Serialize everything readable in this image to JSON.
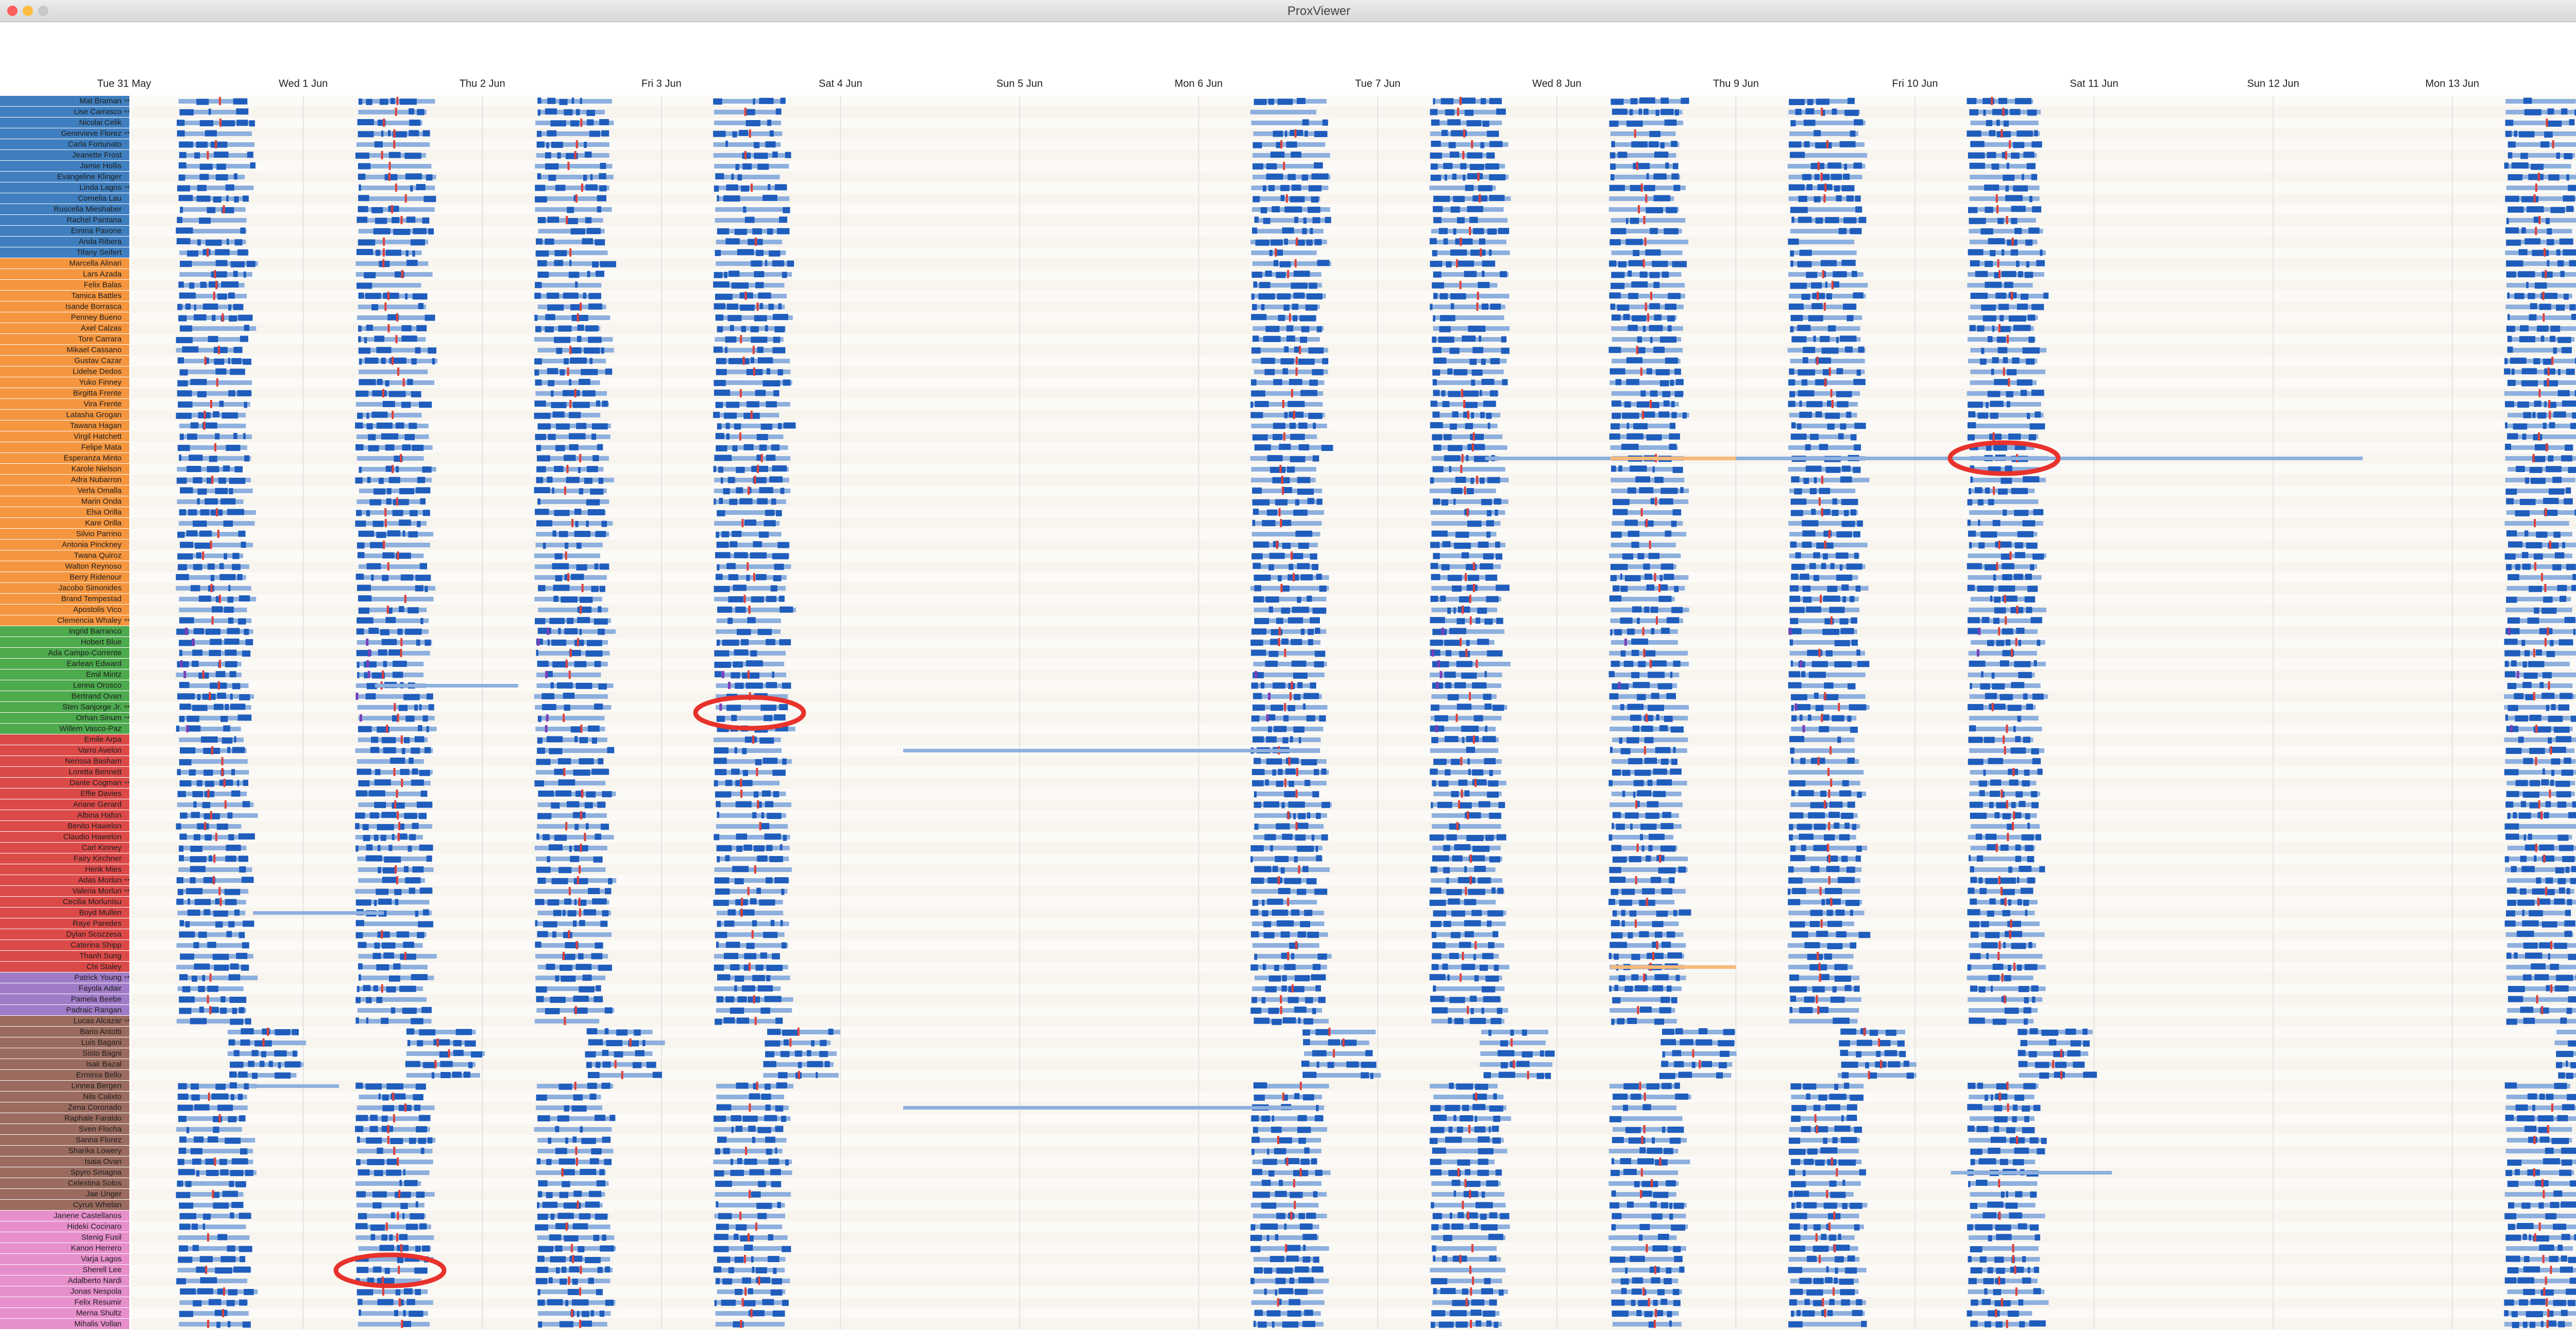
{
  "window_title": "ProxViewer",
  "days": [
    "Tue 31 May",
    "Wed 1 Jun",
    "Thu 2 Jun",
    "Fri 3 Jun",
    "Sat 4 Jun",
    "Sun 5 Jun",
    "Mon 6 Jun",
    "Tue 7 Jun",
    "Wed 8 Jun",
    "Thu 9 Jun",
    "Fri 10 Jun",
    "Sat 11 Jun",
    "Sun 12 Jun",
    "Mon 13 Jun"
  ],
  "groups": [
    {
      "color": "#3f7fbf",
      "people": [
        {
          "name": "Mat Braman",
          "flag": "**"
        },
        {
          "name": "Lise Carrasco",
          "flag": "**"
        },
        {
          "name": "Nicolai Celik"
        },
        {
          "name": "Genevieve Florez",
          "flag": "**"
        },
        {
          "name": "Carla Fortunato"
        },
        {
          "name": "Jeanette Frost"
        },
        {
          "name": "Jamie Hollis"
        },
        {
          "name": "Evangeline Klinger"
        },
        {
          "name": "Linda Lagos",
          "flag": "**"
        },
        {
          "name": "Cornelia Lau"
        },
        {
          "name": "Ruscella Mieshaber"
        },
        {
          "name": "Rachel Pantana"
        },
        {
          "name": "Emma Pavone"
        },
        {
          "name": "Anda Ribera"
        },
        {
          "name": "Tifany Seifert"
        }
      ]
    },
    {
      "color": "#f5963f",
      "people": [
        {
          "name": "Marcella Alinari"
        },
        {
          "name": "Lars Azada"
        },
        {
          "name": "Felix Balas"
        },
        {
          "name": "Tamica Battles"
        },
        {
          "name": "Isande Borrasca"
        },
        {
          "name": "Penney Bueno"
        },
        {
          "name": "Axel Calzas"
        },
        {
          "name": "Tore Carrara"
        },
        {
          "name": "Mikael Cassano"
        },
        {
          "name": "Gustav Cazar"
        },
        {
          "name": "Lidelse Dedos"
        },
        {
          "name": "Yuko Finney"
        },
        {
          "name": "Birgitta Frente"
        },
        {
          "name": "Vira Frente"
        },
        {
          "name": "Latasha Grogan"
        },
        {
          "name": "Tawana Hagan"
        },
        {
          "name": "Virgil Hatchett"
        },
        {
          "name": "Felipe Mata"
        },
        {
          "name": "Esperanza Minto"
        },
        {
          "name": "Karole Nielson"
        },
        {
          "name": "Adra Nubarron"
        },
        {
          "name": "Verla Omalla"
        },
        {
          "name": "Marin Onda"
        },
        {
          "name": "Elsa Orilla"
        },
        {
          "name": "Kare Orilla"
        },
        {
          "name": "Silvio Parrino"
        },
        {
          "name": "Antonia Pinckney"
        },
        {
          "name": "Twana Quiroz"
        },
        {
          "name": "Walton Reynoso"
        },
        {
          "name": "Berry Ridenour"
        },
        {
          "name": "Jacobo Simonides"
        },
        {
          "name": "Brand Tempestad"
        },
        {
          "name": "Apostolis Vico"
        },
        {
          "name": "Clemencia Whaley",
          "flag": "**"
        }
      ]
    },
    {
      "color": "#4daa4d",
      "people": [
        {
          "name": "Ingrid Barranco"
        },
        {
          "name": "Hobert Blue"
        },
        {
          "name": "Ada Campo-Corrente"
        },
        {
          "name": "Earlean Edward"
        },
        {
          "name": "Emil Mintz"
        },
        {
          "name": "Lenna Orosco"
        },
        {
          "name": "Bertrand Ovan"
        },
        {
          "name": "Sten Sanjorge Jr.",
          "flag": "**"
        },
        {
          "name": "Orhan Sinum",
          "flag": "**"
        },
        {
          "name": "Willem Vasco-Paz"
        }
      ]
    },
    {
      "color": "#dc4a48",
      "people": [
        {
          "name": "Emile Arpa"
        },
        {
          "name": "Varro Avelon"
        },
        {
          "name": "Nerissa Basham"
        },
        {
          "name": "Loretta Bennett"
        },
        {
          "name": "Dante Cogman",
          "flag": "**"
        },
        {
          "name": "Effie Davies"
        },
        {
          "name": "Ariane Gerard"
        },
        {
          "name": "Albina Hafon"
        },
        {
          "name": "Benito Hawelon"
        },
        {
          "name": "Claudio Hawelon"
        },
        {
          "name": "Carl Kinney"
        },
        {
          "name": "Fairy Kirchner"
        },
        {
          "name": "Henk Mies"
        },
        {
          "name": "Adas Morlun",
          "flag": "**"
        },
        {
          "name": "Valeria Morlun",
          "flag": "**"
        },
        {
          "name": "Cecilia Morlunisu"
        },
        {
          "name": "Boyd Mullen"
        },
        {
          "name": "Raye Paredes"
        },
        {
          "name": "Dylan Scozzesa"
        },
        {
          "name": "Caterina Shipp"
        },
        {
          "name": "Thanh Sung"
        },
        {
          "name": "Chi Staley"
        }
      ]
    },
    {
      "color": "#a07cc8",
      "people": [
        {
          "name": "Patrick Young",
          "flag": "**"
        },
        {
          "name": "Fayola Adair"
        },
        {
          "name": "Pamela Beebe"
        },
        {
          "name": "Padraic Rangan"
        }
      ]
    },
    {
      "color": "#9b6b5f",
      "people": [
        {
          "name": "Lucas Alcazar",
          "flag": "**"
        },
        {
          "name": "Bario Antotti"
        },
        {
          "name": "Luis Bagani"
        },
        {
          "name": "Sisto Bagni"
        },
        {
          "name": "Isak Bazal"
        },
        {
          "name": "Erminia Bello"
        },
        {
          "name": "Linnea Bergen"
        },
        {
          "name": "Nils Calixto"
        },
        {
          "name": "Zena Coronado"
        },
        {
          "name": "Raphale Faraldo"
        },
        {
          "name": "Sven Flocha"
        },
        {
          "name": "Sanna Florez"
        },
        {
          "name": "Sharika Lowery"
        },
        {
          "name": "Isaia Ovan"
        },
        {
          "name": "Spyro Smagna"
        },
        {
          "name": "Celestina Solos"
        },
        {
          "name": "Jae Unger"
        },
        {
          "name": "Cyrus Whelan"
        }
      ]
    },
    {
      "color": "#e68fcb",
      "people": [
        {
          "name": "Janene Castellanos"
        },
        {
          "name": "Hideki Cocinaro"
        },
        {
          "name": "Stenig Fusil"
        },
        {
          "name": "Kanon Herrero"
        },
        {
          "name": "Varja Lagos"
        },
        {
          "name": "Sherell Lee"
        },
        {
          "name": "Adalberto Nardi"
        },
        {
          "name": "Jonas Nespola"
        },
        {
          "name": "Felix Resumir"
        },
        {
          "name": "Merna Shultz"
        },
        {
          "name": "Mihalis Vollan"
        }
      ]
    }
  ]
}
